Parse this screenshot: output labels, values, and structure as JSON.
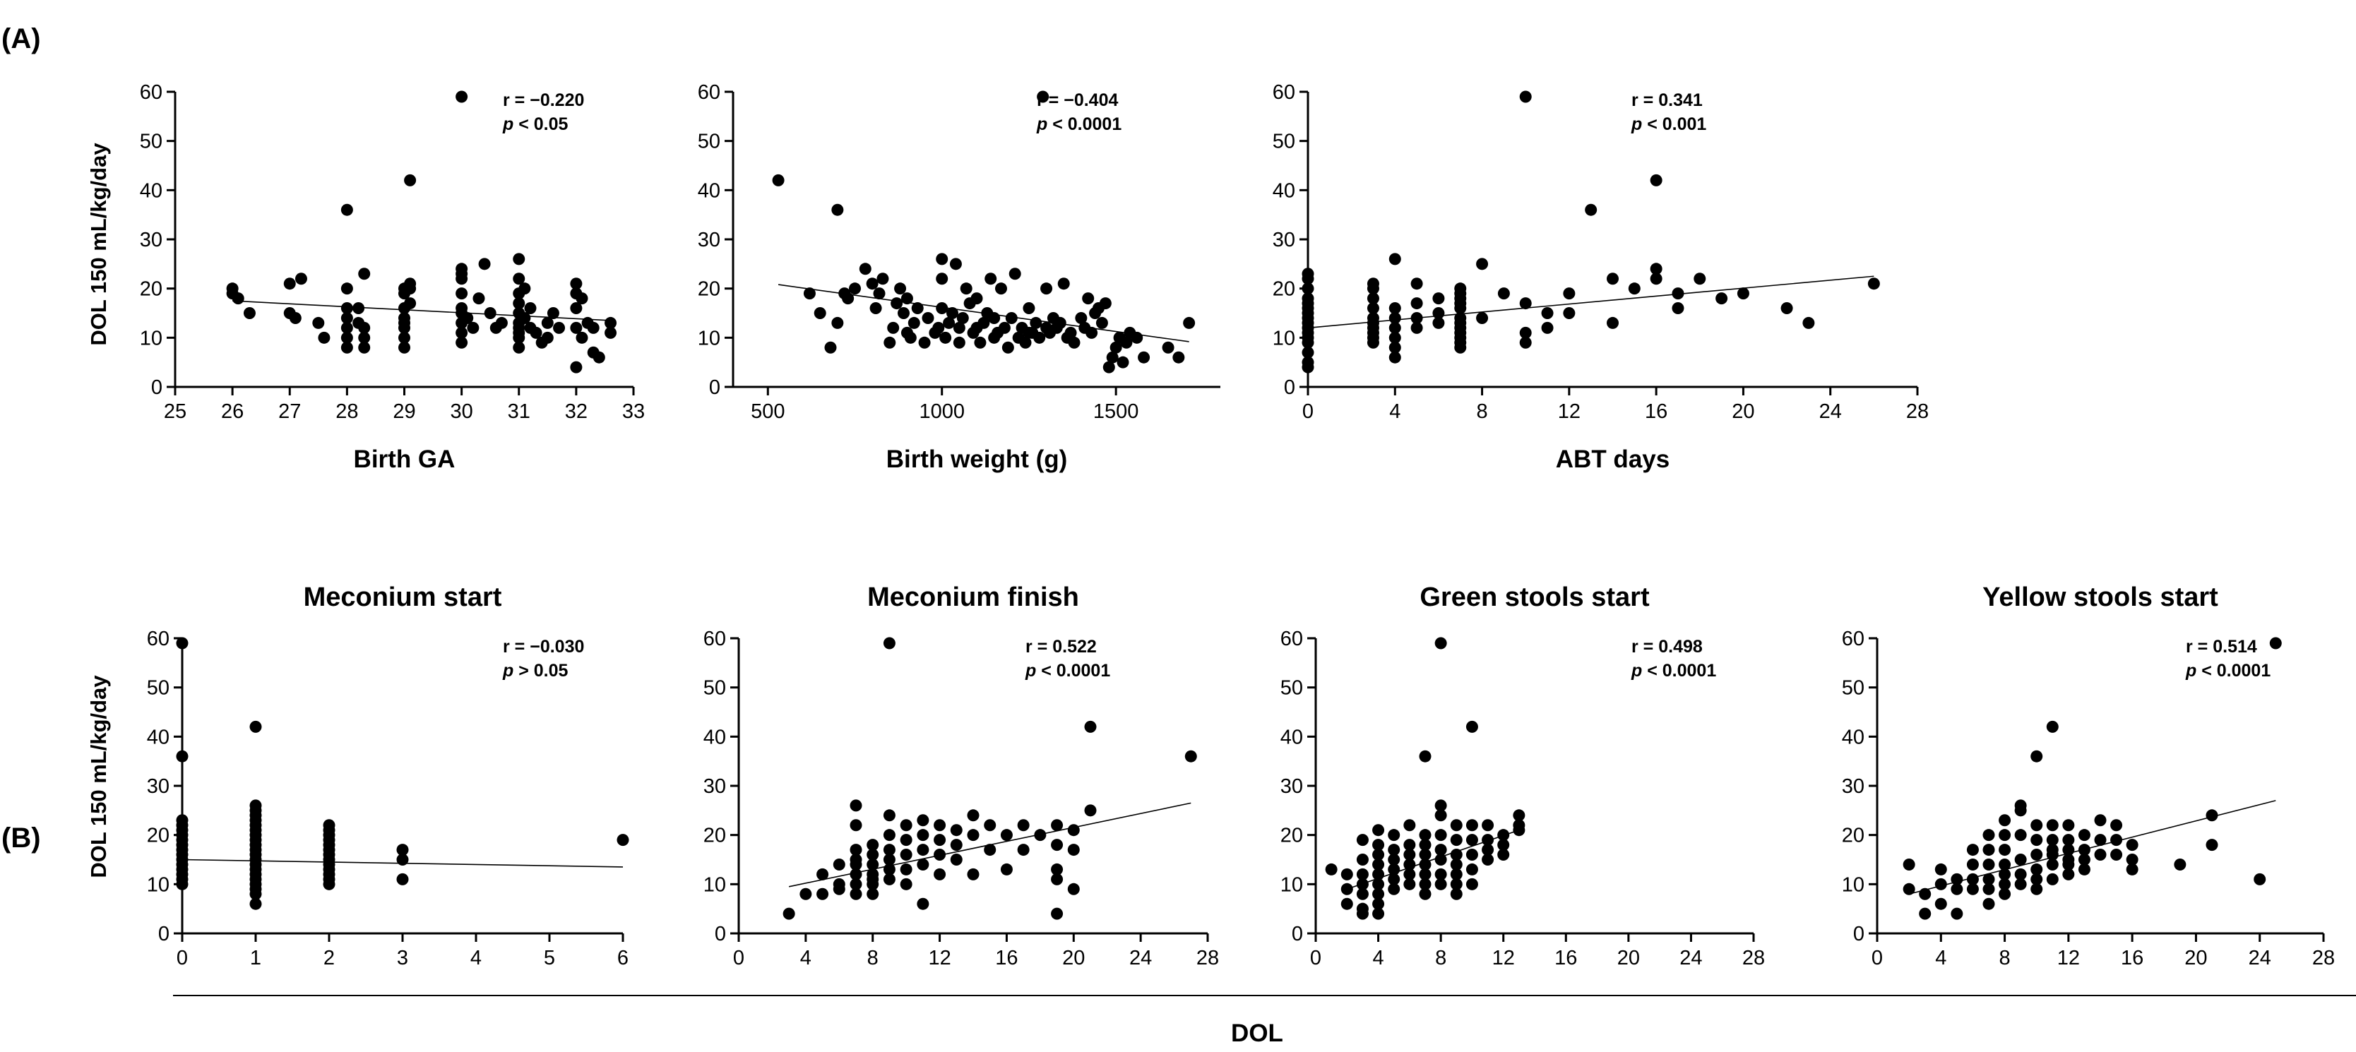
{
  "panel_labels": {
    "A": "(A)",
    "B": "(B)"
  },
  "shared_ylabel": "DOL 150 mL/kg/day",
  "shared_xlabel_B": "DOL",
  "chart_data": [
    {
      "id": "a1",
      "type": "scatter",
      "panel": "A",
      "title": "",
      "xlabel": "Birth GA",
      "ylabel": "DOL 150 mL/kg/day",
      "xlim": [
        25,
        33
      ],
      "xticks": [
        25,
        26,
        27,
        28,
        29,
        30,
        31,
        32,
        33
      ],
      "ylim": [
        0,
        60
      ],
      "yticks": [
        0,
        10,
        20,
        30,
        40,
        50,
        60
      ],
      "stat_r": "r = −0.220",
      "stat_p_label": "p",
      "stat_p_rest": " < 0.05",
      "fit": {
        "x": [
          26,
          32.6
        ],
        "y": [
          17.5,
          13.5
        ]
      },
      "x": [
        26,
        26,
        26.1,
        26.3,
        27,
        27,
        27.1,
        27.2,
        27.5,
        27.6,
        28,
        28,
        28,
        28,
        28,
        28,
        28,
        28.2,
        28.2,
        28.3,
        28.3,
        28.3,
        28.3,
        29,
        29,
        29,
        29,
        29,
        29,
        29,
        29,
        29.1,
        29.1,
        29.1,
        30,
        30,
        30,
        30,
        30,
        30,
        30,
        30,
        30.1,
        30.2,
        30.3,
        30.4,
        30.5,
        30.6,
        30.7,
        31,
        31,
        31,
        31,
        31,
        31,
        31,
        31,
        31,
        31,
        31.1,
        31.1,
        31.2,
        31.2,
        31.3,
        31.4,
        31.5,
        31.5,
        31.6,
        31.7,
        32,
        32,
        32,
        32,
        32,
        32.1,
        32.1,
        32.2,
        32.3,
        32.3,
        32.4,
        32.6,
        32.6,
        29.1,
        30,
        30
      ],
      "y": [
        20,
        19,
        18,
        15,
        21,
        15,
        14,
        22,
        13,
        10,
        36,
        20,
        16,
        14,
        12,
        10,
        8,
        16,
        13,
        12,
        10,
        8,
        23,
        20,
        19,
        16,
        14,
        13,
        12,
        10,
        8,
        42,
        21,
        17,
        59,
        24,
        22,
        19,
        16,
        13,
        11,
        9,
        14,
        12,
        18,
        25,
        15,
        12,
        13,
        26,
        22,
        19,
        17,
        15,
        13,
        12,
        11,
        10,
        8,
        20,
        14,
        16,
        12,
        11,
        9,
        13,
        10,
        15,
        12,
        21,
        19,
        16,
        12,
        4,
        18,
        10,
        13,
        7,
        12,
        6,
        11,
        13,
        20,
        23,
        15
      ]
    },
    {
      "id": "a2",
      "type": "scatter",
      "panel": "A",
      "title": "",
      "xlabel": "Birth weight (g)",
      "ylabel": "",
      "xlim": [
        400,
        1800
      ],
      "xticks": [
        500,
        1000,
        1500
      ],
      "ylim": [
        0,
        60
      ],
      "yticks": [
        0,
        10,
        20,
        30,
        40,
        50,
        60
      ],
      "stat_r": "r = −0.404",
      "stat_p_label": "p",
      "stat_p_rest": " < 0.0001",
      "fit": {
        "x": [
          530,
          1710
        ],
        "y": [
          20.8,
          9.2
        ]
      },
      "x": [
        530,
        620,
        650,
        680,
        700,
        700,
        720,
        730,
        750,
        780,
        800,
        810,
        820,
        830,
        850,
        860,
        870,
        880,
        890,
        900,
        900,
        910,
        920,
        930,
        950,
        960,
        980,
        990,
        1000,
        1000,
        1010,
        1020,
        1030,
        1040,
        1050,
        1060,
        1070,
        1080,
        1090,
        1100,
        1100,
        1110,
        1120,
        1130,
        1140,
        1150,
        1160,
        1170,
        1180,
        1190,
        1200,
        1210,
        1220,
        1230,
        1240,
        1250,
        1260,
        1270,
        1280,
        1290,
        1300,
        1300,
        1310,
        1320,
        1330,
        1340,
        1350,
        1360,
        1370,
        1380,
        1400,
        1410,
        1420,
        1430,
        1440,
        1450,
        1460,
        1470,
        1480,
        1490,
        1500,
        1510,
        1520,
        1530,
        1540,
        1560,
        1580,
        1650,
        1680,
        1710,
        1000,
        1050,
        1150,
        1250
      ],
      "y": [
        42,
        19,
        15,
        8,
        13,
        36,
        19,
        18,
        20,
        24,
        21,
        16,
        19,
        22,
        9,
        12,
        17,
        20,
        15,
        18,
        11,
        10,
        13,
        16,
        9,
        14,
        11,
        12,
        26,
        22,
        10,
        13,
        15,
        25,
        9,
        14,
        20,
        17,
        11,
        12,
        18,
        9,
        13,
        15,
        22,
        10,
        11,
        20,
        12,
        8,
        14,
        23,
        10,
        12,
        9,
        16,
        11,
        13,
        10,
        59,
        20,
        12,
        11,
        14,
        12,
        13,
        21,
        10,
        11,
        9,
        14,
        12,
        18,
        11,
        15,
        16,
        13,
        17,
        4,
        6,
        8,
        10,
        5,
        9,
        11,
        10,
        6,
        8,
        6,
        13,
        16,
        12,
        14,
        11
      ]
    },
    {
      "id": "a3",
      "type": "scatter",
      "panel": "A",
      "title": "",
      "xlabel": "ABT days",
      "ylabel": "",
      "xlim": [
        0,
        28
      ],
      "xticks": [
        0,
        4,
        8,
        12,
        16,
        20,
        24,
        28
      ],
      "ylim": [
        0,
        60
      ],
      "yticks": [
        0,
        10,
        20,
        30,
        40,
        50,
        60
      ],
      "stat_r": "r = 0.341",
      "stat_p_label": "p",
      "stat_p_rest": " < 0.001",
      "fit": {
        "x": [
          0,
          26
        ],
        "y": [
          12,
          22.5
        ]
      },
      "x": [
        0,
        0,
        0,
        0,
        0,
        0,
        0,
        0,
        0,
        0,
        0,
        0,
        0,
        0,
        0,
        0,
        3,
        3,
        3,
        3,
        3,
        3,
        3,
        3,
        3,
        3,
        4,
        4,
        4,
        4,
        4,
        4,
        4,
        5,
        5,
        5,
        5,
        6,
        6,
        6,
        7,
        7,
        7,
        7,
        7,
        7,
        7,
        7,
        7,
        7,
        7,
        7,
        8,
        8,
        9,
        10,
        10,
        10,
        10,
        11,
        11,
        12,
        12,
        13,
        14,
        14,
        15,
        16,
        16,
        16,
        17,
        17,
        18,
        19,
        20,
        22,
        23,
        26
      ],
      "y": [
        23,
        22,
        20,
        18,
        17,
        16,
        15,
        14,
        13,
        12,
        11,
        10,
        9,
        7,
        5,
        4,
        21,
        20,
        18,
        16,
        14,
        13,
        12,
        11,
        10,
        9,
        26,
        16,
        14,
        12,
        10,
        8,
        6,
        21,
        17,
        14,
        12,
        18,
        15,
        13,
        20,
        19,
        18,
        17,
        16,
        14,
        13,
        12,
        11,
        10,
        9,
        8,
        25,
        14,
        19,
        59,
        17,
        11,
        9,
        15,
        12,
        19,
        15,
        36,
        22,
        13,
        20,
        42,
        24,
        22,
        19,
        16,
        22,
        18,
        19,
        16,
        13,
        21
      ]
    },
    {
      "id": "b1",
      "type": "scatter",
      "panel": "B",
      "title": "Meconium start",
      "xlabel": "",
      "ylabel": "DOL 150 mL/kg/day",
      "xlim": [
        0,
        6
      ],
      "xticks": [
        0,
        1,
        2,
        3,
        4,
        5,
        6
      ],
      "ylim": [
        0,
        60
      ],
      "yticks": [
        0,
        10,
        20,
        30,
        40,
        50,
        60
      ],
      "stat_r": "r = −0.030",
      "stat_p_label": "p",
      "stat_p_rest": " > 0.05",
      "fit": {
        "x": [
          0,
          6
        ],
        "y": [
          15,
          13.5
        ]
      },
      "x": [
        0,
        0,
        0,
        0,
        0,
        0,
        0,
        0,
        0,
        0,
        0,
        0,
        0,
        0,
        0,
        0,
        1,
        1,
        1,
        1,
        1,
        1,
        1,
        1,
        1,
        1,
        1,
        1,
        1,
        1,
        1,
        1,
        1,
        1,
        1,
        1,
        1,
        2,
        2,
        2,
        2,
        2,
        2,
        2,
        2,
        2,
        2,
        2,
        2,
        2,
        3,
        3,
        3,
        6
      ],
      "y": [
        59,
        36,
        23,
        22,
        21,
        20,
        19,
        18,
        17,
        16,
        15,
        14,
        13,
        12,
        11,
        10,
        42,
        26,
        25,
        24,
        23,
        22,
        21,
        20,
        19,
        18,
        17,
        16,
        15,
        14,
        13,
        12,
        11,
        10,
        9,
        8,
        6,
        22,
        21,
        20,
        19,
        18,
        17,
        16,
        15,
        14,
        13,
        12,
        11,
        10,
        17,
        15,
        11,
        19
      ]
    },
    {
      "id": "b2",
      "type": "scatter",
      "panel": "B",
      "title": "Meconium finish",
      "xlabel": "",
      "ylabel": "",
      "xlim": [
        0,
        28
      ],
      "xticks": [
        0,
        4,
        8,
        12,
        16,
        20,
        24,
        28
      ],
      "ylim": [
        0,
        60
      ],
      "yticks": [
        0,
        10,
        20,
        30,
        40,
        50,
        60
      ],
      "stat_r": "r = 0.522",
      "stat_p_label": "p",
      "stat_p_rest": " < 0.0001",
      "fit": {
        "x": [
          3,
          27
        ],
        "y": [
          9.5,
          26.5
        ]
      },
      "x": [
        3,
        4,
        5,
        5,
        6,
        6,
        6,
        7,
        7,
        7,
        7,
        7,
        7,
        7,
        8,
        8,
        8,
        8,
        8,
        8,
        8,
        9,
        9,
        9,
        9,
        9,
        9,
        10,
        10,
        10,
        10,
        10,
        11,
        11,
        11,
        11,
        11,
        12,
        12,
        12,
        12,
        13,
        13,
        13,
        14,
        14,
        14,
        15,
        15,
        16,
        16,
        17,
        17,
        18,
        19,
        19,
        19,
        19,
        19,
        20,
        20,
        20,
        21,
        21,
        27,
        9,
        7
      ],
      "y": [
        4,
        8,
        12,
        8,
        14,
        10,
        9,
        26,
        22,
        17,
        14,
        12,
        10,
        8,
        18,
        16,
        14,
        12,
        11,
        10,
        8,
        59,
        20,
        17,
        15,
        13,
        11,
        22,
        19,
        16,
        13,
        10,
        23,
        20,
        17,
        14,
        6,
        22,
        19,
        16,
        12,
        21,
        18,
        15,
        24,
        20,
        12,
        22,
        17,
        20,
        13,
        22,
        17,
        20,
        22,
        18,
        13,
        11,
        4,
        21,
        17,
        9,
        42,
        25,
        36,
        24,
        15
      ]
    },
    {
      "id": "b3",
      "type": "scatter",
      "panel": "B",
      "title": "Green stools start",
      "xlabel": "",
      "ylabel": "",
      "xlim": [
        0,
        28
      ],
      "xticks": [
        0,
        4,
        8,
        12,
        16,
        20,
        24,
        28
      ],
      "ylim": [
        0,
        60
      ],
      "yticks": [
        0,
        10,
        20,
        30,
        40,
        50,
        60
      ],
      "stat_r": "r = 0.498",
      "stat_p_label": "p",
      "stat_p_rest": " < 0.0001",
      "fit": {
        "x": [
          2,
          13
        ],
        "y": [
          9,
          21
        ]
      },
      "x": [
        1,
        2,
        2,
        2,
        3,
        3,
        3,
        3,
        3,
        3,
        3,
        4,
        4,
        4,
        4,
        4,
        4,
        4,
        4,
        4,
        5,
        5,
        5,
        5,
        5,
        5,
        6,
        6,
        6,
        6,
        6,
        6,
        7,
        7,
        7,
        7,
        7,
        7,
        7,
        7,
        8,
        8,
        8,
        8,
        8,
        8,
        8,
        8,
        9,
        9,
        9,
        9,
        9,
        9,
        9,
        10,
        10,
        10,
        10,
        10,
        10,
        11,
        11,
        11,
        11,
        12,
        12,
        12,
        13,
        13,
        13
      ],
      "y": [
        13,
        12,
        9,
        6,
        19,
        15,
        12,
        10,
        8,
        5,
        4,
        21,
        18,
        16,
        14,
        12,
        10,
        8,
        6,
        4,
        20,
        17,
        15,
        13,
        11,
        9,
        22,
        18,
        16,
        14,
        12,
        10,
        36,
        20,
        18,
        16,
        14,
        12,
        10,
        8,
        59,
        26,
        24,
        20,
        17,
        15,
        12,
        10,
        22,
        19,
        16,
        14,
        12,
        10,
        8,
        42,
        22,
        19,
        16,
        13,
        10,
        22,
        19,
        17,
        15,
        20,
        18,
        16,
        24,
        22,
        21
      ]
    },
    {
      "id": "b4",
      "type": "scatter",
      "panel": "B",
      "title": "Yellow stools start",
      "xlabel": "",
      "ylabel": "",
      "xlim": [
        0,
        28
      ],
      "xticks": [
        0,
        4,
        8,
        12,
        16,
        20,
        24,
        28
      ],
      "ylim": [
        0,
        60
      ],
      "yticks": [
        0,
        10,
        20,
        30,
        40,
        50,
        60
      ],
      "stat_r": "r = 0.514",
      "stat_p_label": "p",
      "stat_p_rest": " < 0.0001",
      "fit": {
        "x": [
          2,
          25
        ],
        "y": [
          8,
          27
        ]
      },
      "x": [
        2,
        2,
        3,
        3,
        4,
        4,
        4,
        5,
        5,
        5,
        6,
        6,
        6,
        6,
        7,
        7,
        7,
        7,
        7,
        7,
        8,
        8,
        8,
        8,
        8,
        8,
        8,
        9,
        9,
        9,
        9,
        9,
        9,
        10,
        10,
        10,
        10,
        10,
        10,
        10,
        11,
        11,
        11,
        11,
        11,
        11,
        12,
        12,
        12,
        12,
        12,
        13,
        13,
        13,
        13,
        14,
        14,
        14,
        15,
        15,
        15,
        16,
        16,
        16,
        19,
        21,
        21,
        24,
        25,
        11,
        12
      ],
      "y": [
        14,
        9,
        8,
        4,
        13,
        10,
        6,
        11,
        9,
        4,
        17,
        14,
        11,
        9,
        20,
        17,
        14,
        11,
        9,
        6,
        23,
        20,
        17,
        14,
        12,
        10,
        8,
        26,
        25,
        20,
        15,
        12,
        10,
        36,
        22,
        19,
        16,
        13,
        11,
        9,
        42,
        22,
        19,
        16,
        14,
        11,
        22,
        19,
        17,
        15,
        12,
        20,
        17,
        15,
        13,
        23,
        19,
        16,
        22,
        19,
        16,
        18,
        15,
        13,
        14,
        24,
        18,
        11,
        59,
        17,
        14
      ]
    }
  ]
}
